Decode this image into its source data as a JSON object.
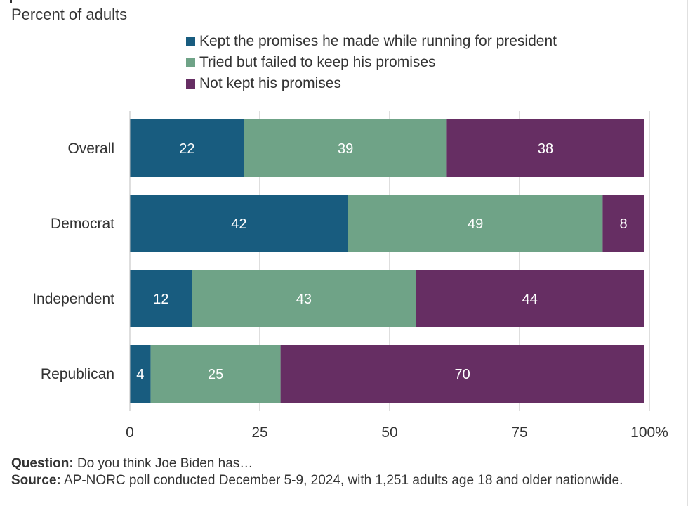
{
  "subtitle": "Percent of adults",
  "colors": {
    "kept": "#185c7f",
    "tried": "#6fa387",
    "not_kept": "#662e63",
    "axis": "#bdbdbd",
    "text": "#333333",
    "bar_label": "#ffffff"
  },
  "chart_data": {
    "type": "bar",
    "orientation": "horizontal",
    "stacked": true,
    "categories": [
      "Overall",
      "Democrat",
      "Independent",
      "Republican"
    ],
    "series": [
      {
        "name": "Kept the promises he made while running for president",
        "values": [
          22,
          42,
          12,
          4
        ]
      },
      {
        "name": "Tried but failed to keep his promises",
        "values": [
          39,
          49,
          43,
          25
        ]
      },
      {
        "name": "Not kept his promises",
        "values": [
          38,
          8,
          44,
          70
        ]
      }
    ],
    "xlim": [
      0,
      100
    ],
    "xticks": [
      0,
      25,
      50,
      75,
      100
    ],
    "xtick_labels": [
      "0",
      "25",
      "50",
      "75",
      "100%"
    ],
    "title": "",
    "xlabel": "",
    "ylabel": "",
    "grid": "vertical",
    "legend_position": "top"
  },
  "footnote": {
    "question_label": "Question:",
    "question_text": " Do you think Joe Biden has…",
    "source_label": "Source:",
    "source_text": " AP-NORC poll conducted December 5-9, 2024, with 1,251 adults age 18 and older nationwide."
  }
}
